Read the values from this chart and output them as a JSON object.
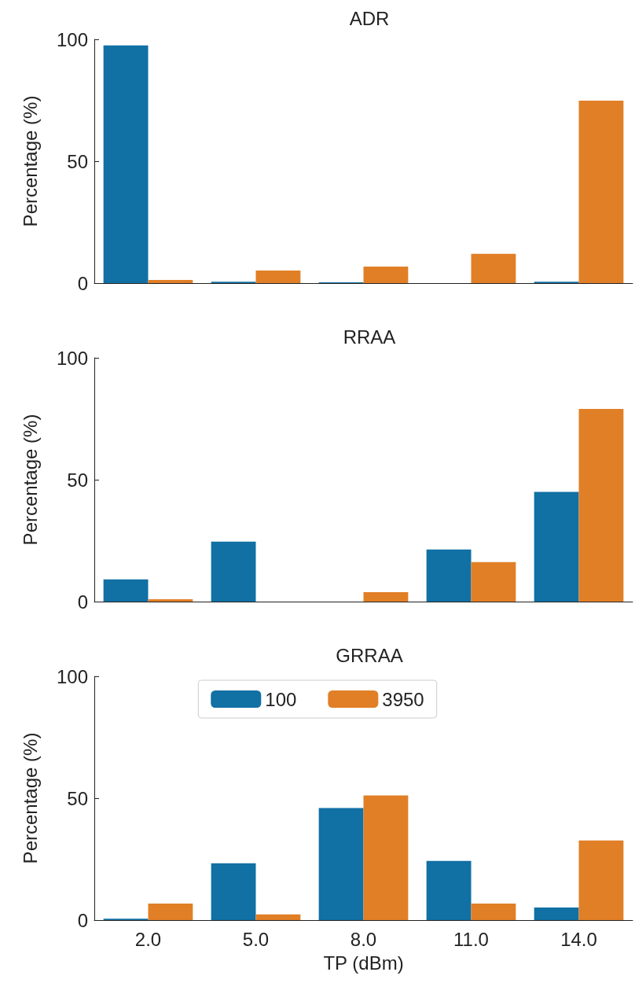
{
  "chart_data": [
    {
      "type": "bar",
      "title": "ADR",
      "ylabel": "Percentage (%)",
      "categories": [
        "2.0",
        "5.0",
        "8.0",
        "11.0",
        "14.0"
      ],
      "series": [
        {
          "color": "#1170a4",
          "values": [
            97.5,
            0.6,
            0.3,
            0,
            0.6
          ]
        },
        {
          "color": "#e17f27",
          "values": [
            1.3,
            5.2,
            6.8,
            12,
            74.8
          ]
        }
      ],
      "ylim": [
        0,
        100
      ],
      "yticks": [
        0,
        50,
        100
      ],
      "tick_labels": "y"
    },
    {
      "type": "bar",
      "title": "RRAA",
      "ylabel": "Percentage (%)",
      "categories": [
        "2.0",
        "5.0",
        "8.0",
        "11.0",
        "14.0"
      ],
      "series": [
        {
          "color": "#1170a4",
          "values": [
            9.1,
            24.6,
            0,
            21.4,
            45
          ]
        },
        {
          "color": "#e17f27",
          "values": [
            1,
            0,
            3.9,
            16.2,
            79
          ]
        }
      ],
      "ylim": [
        0,
        100
      ],
      "yticks": [
        0,
        50,
        100
      ],
      "tick_labels": "y"
    },
    {
      "type": "bar",
      "title": "GRRAA",
      "xlabel": "TP (dBm)",
      "ylabel": "Percentage (%)",
      "categories": [
        "2.0",
        "5.0",
        "8.0",
        "11.0",
        "14.0"
      ],
      "series": [
        {
          "name": "100",
          "color": "#1170a4",
          "values": [
            0.6,
            23.3,
            46,
            24.3,
            5.2
          ]
        },
        {
          "name": "3950",
          "color": "#e17f27",
          "values": [
            6.8,
            2.3,
            51.1,
            6.8,
            32.7
          ]
        }
      ],
      "ylim": [
        0,
        100
      ],
      "yticks": [
        0,
        50,
        100
      ],
      "legend": "top"
    }
  ]
}
